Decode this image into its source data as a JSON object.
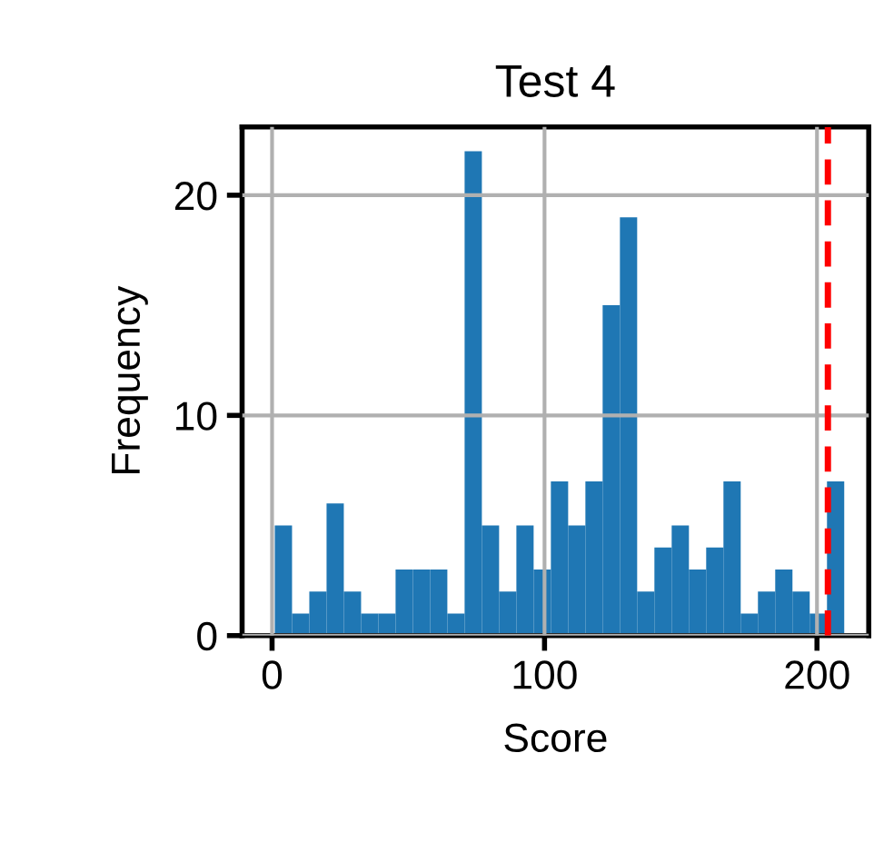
{
  "chart_data": {
    "type": "histogram",
    "title": "Test 4",
    "xlabel": "Score",
    "ylabel": "Frequency",
    "bins": [
      1,
      7.33,
      13.67,
      20,
      26.33,
      32.67,
      39,
      45.33,
      51.67,
      58,
      64.33,
      70.67,
      77,
      83.33,
      89.67,
      96,
      102.33,
      108.67,
      115,
      121.33,
      127.67,
      134,
      140.33,
      146.67,
      153,
      159.33,
      165.67,
      172,
      178.33,
      184.67,
      191,
      197.33,
      203.67,
      210
    ],
    "values": [
      5,
      1,
      2,
      6,
      2,
      1,
      1,
      3,
      3,
      3,
      1,
      22,
      5,
      2,
      5,
      3,
      7,
      5,
      7,
      15,
      19,
      2,
      4,
      5,
      3,
      4,
      7,
      1,
      2,
      3,
      2,
      1,
      7
    ],
    "color": "#1f77b4",
    "xlim": [
      -11,
      219
    ],
    "ylim": [
      0,
      23.1
    ],
    "xticks": [
      0,
      100,
      200
    ],
    "yticks": [
      0,
      10,
      20
    ],
    "grid": true,
    "ref_lines": [
      {
        "axis": "x",
        "value": 204,
        "color": "#ff0000",
        "line_style": "dashed"
      }
    ]
  }
}
